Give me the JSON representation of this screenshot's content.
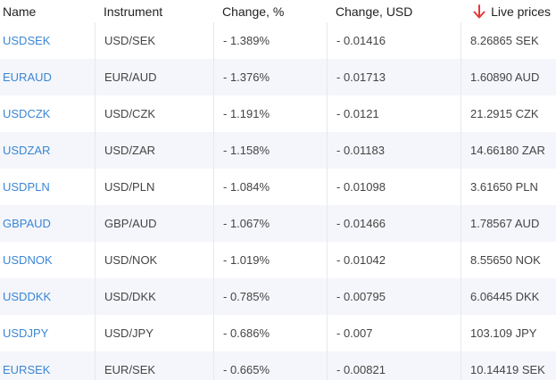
{
  "header": {
    "name": "Name",
    "instrument": "Instrument",
    "change_pct": "Change, %",
    "change_usd": "Change, USD",
    "live_prices": "Live prices",
    "sort_icon": "arrow-down-icon",
    "sort_color": "#e53935"
  },
  "link_color": "#3a86d4",
  "rows": [
    {
      "name": "USDSEK",
      "instrument": "USD/SEK",
      "change_pct": "- 1.389%",
      "change_usd": "- 0.01416",
      "price": "8.26865 SEK"
    },
    {
      "name": "EURAUD",
      "instrument": "EUR/AUD",
      "change_pct": "- 1.376%",
      "change_usd": "- 0.01713",
      "price": "1.60890 AUD"
    },
    {
      "name": "USDCZK",
      "instrument": "USD/CZK",
      "change_pct": "- 1.191%",
      "change_usd": "- 0.0121",
      "price": "21.2915 CZK"
    },
    {
      "name": "USDZAR",
      "instrument": "USD/ZAR",
      "change_pct": "- 1.158%",
      "change_usd": "- 0.01183",
      "price": "14.66180 ZAR"
    },
    {
      "name": "USDPLN",
      "instrument": "USD/PLN",
      "change_pct": "- 1.084%",
      "change_usd": "- 0.01098",
      "price": "3.61650 PLN"
    },
    {
      "name": "GBPAUD",
      "instrument": "GBP/AUD",
      "change_pct": "- 1.067%",
      "change_usd": "- 0.01466",
      "price": "1.78567 AUD"
    },
    {
      "name": "USDNOK",
      "instrument": "USD/NOK",
      "change_pct": "- 1.019%",
      "change_usd": "- 0.01042",
      "price": "8.55650 NOK"
    },
    {
      "name": "USDDKK",
      "instrument": "USD/DKK",
      "change_pct": "- 0.785%",
      "change_usd": "- 0.00795",
      "price": "6.06445 DKK"
    },
    {
      "name": "USDJPY",
      "instrument": "USD/JPY",
      "change_pct": "- 0.686%",
      "change_usd": "- 0.007",
      "price": "103.109 JPY"
    },
    {
      "name": "EURSEK",
      "instrument": "EUR/SEK",
      "change_pct": "- 0.665%",
      "change_usd": "- 0.00821",
      "price": "10.14419 SEK"
    }
  ]
}
